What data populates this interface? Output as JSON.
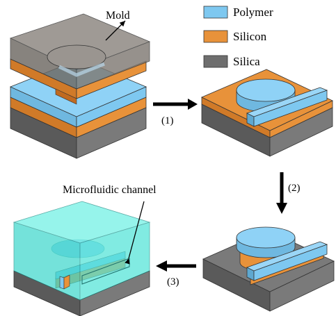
{
  "labels": {
    "mold": "Mold",
    "microfluidic_channel": "Microfluidic channel"
  },
  "legend": [
    {
      "label": "Polymer",
      "color": "#7ec8f0"
    },
    {
      "label": "Silicon",
      "color": "#e8923a"
    },
    {
      "label": "Silica",
      "color": "#6e6e6e"
    }
  ],
  "steps": [
    "(1)",
    "(2)",
    "(3)"
  ],
  "colors": {
    "polymer": "#7ec8f0",
    "silicon": "#e8923a",
    "silica": "#6e6e6e",
    "mold": "#7a756e",
    "cover": "#4fe3d8"
  }
}
